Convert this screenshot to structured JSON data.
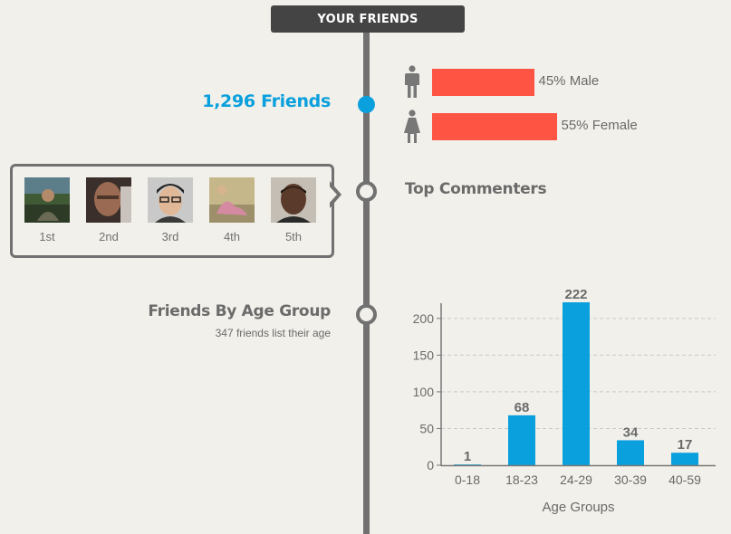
{
  "header": {
    "title": "YOUR FRIENDS"
  },
  "friends": {
    "count_label": "1,296 Friends",
    "gender": [
      {
        "icon": "male-icon",
        "percent": 45,
        "label": "45% Male"
      },
      {
        "icon": "female-icon",
        "percent": 55,
        "label": "55% Female"
      }
    ]
  },
  "top_commenters": {
    "heading": "Top Commenters",
    "people": [
      {
        "rank": "1st"
      },
      {
        "rank": "2nd"
      },
      {
        "rank": "3rd"
      },
      {
        "rank": "4th"
      },
      {
        "rank": "5th"
      }
    ]
  },
  "age_section": {
    "heading": "Friends By Age Group",
    "subcaption": "347 friends list their age"
  },
  "colors": {
    "accent": "#0aa0dd",
    "bar_gender": "#fd5443",
    "timeline": "#717171",
    "background": "#f2f0ea"
  },
  "chart_data": {
    "type": "bar",
    "title": "",
    "xlabel": "Age Groups",
    "ylabel": "",
    "categories": [
      "0-18",
      "18-23",
      "24-29",
      "30-39",
      "40-59"
    ],
    "values": [
      1,
      68,
      222,
      34,
      17
    ],
    "ylim": [
      0,
      222
    ],
    "yticks": [
      0,
      50,
      100,
      150,
      200
    ],
    "grid": true,
    "data_labels": true,
    "bar_color": "#0aa0dd"
  }
}
